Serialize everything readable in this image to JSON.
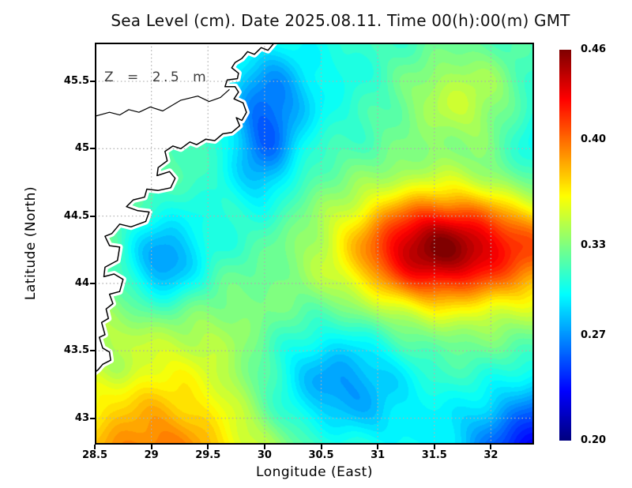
{
  "title": "Sea Level (cm). Date 2025.08.11. Time 00(h):00(m) GMT",
  "annotation": {
    "text": "Z = 2.5 m"
  },
  "axes": {
    "x": {
      "label": "Longitude (East)",
      "ticks": [
        {
          "value": 28.5,
          "label": "28.5"
        },
        {
          "value": 29,
          "label": "29"
        },
        {
          "value": 29.5,
          "label": "29.5"
        },
        {
          "value": 30,
          "label": "30"
        },
        {
          "value": 30.5,
          "label": "30.5"
        },
        {
          "value": 31,
          "label": "31"
        },
        {
          "value": 31.5,
          "label": "31.5"
        },
        {
          "value": 32,
          "label": "32"
        }
      ]
    },
    "y": {
      "label": "Latitude (North)",
      "ticks": [
        {
          "value": 45.5,
          "label": "45.5"
        },
        {
          "value": 45,
          "label": "45"
        },
        {
          "value": 44.5,
          "label": "44.5"
        },
        {
          "value": 44,
          "label": "44"
        },
        {
          "value": 43.5,
          "label": "43.5"
        },
        {
          "value": 43,
          "label": "43"
        }
      ]
    }
  },
  "colorbar": {
    "min": 0.2,
    "max": 0.46,
    "colormap": "jet",
    "labels": [
      {
        "value": 0.46,
        "label": "0.46"
      },
      {
        "value": 0.4,
        "label": "0.40"
      },
      {
        "value": 0.33,
        "label": "0.33"
      },
      {
        "value": 0.27,
        "label": "0.27"
      },
      {
        "value": 0.2,
        "label": "0.20"
      }
    ]
  },
  "chart_data": {
    "type": "heatmap",
    "title": "Sea Level (cm). Date 2025.08.11. Time 00(h):00(m) GMT",
    "xlabel": "Longitude (East)",
    "ylabel": "Latitude (North)",
    "x_range": [
      28.5,
      32.381
    ],
    "y_range": [
      42.804,
      45.787
    ],
    "value_range": [
      0.2,
      0.46
    ],
    "quant_step": 0.005,
    "grid": {
      "x": [
        29,
        29.5,
        30,
        30.5,
        31,
        31.5,
        32
      ],
      "y": [
        43,
        43.5,
        44,
        44.5,
        45,
        45.5
      ]
    },
    "grid_color": "#b0b0b0",
    "land_color": "#ffffff",
    "coast_color": "#000000",
    "base": {
      "level": 0.326,
      "lat_ref": 44.3,
      "slope": -0.0067
    },
    "blobs": [
      {
        "lon": 31.5,
        "lat": 44.26,
        "amp": 0.128,
        "sx": 0.52,
        "sy": 0.29,
        "note": "main high (dark red eddy)"
      },
      {
        "lon": 32.55,
        "lat": 44.28,
        "amp": 0.06,
        "sx": 0.45,
        "sy": 0.3,
        "note": "high extension to east edge"
      },
      {
        "lon": 29.0,
        "lat": 42.55,
        "amp": 0.058,
        "sx": 0.55,
        "sy": 0.45,
        "note": "southwest warm patch (orange)"
      },
      {
        "lon": 29.3,
        "lat": 43.3,
        "amp": 0.018,
        "sx": 0.85,
        "sy": 0.6,
        "note": "broad southwest elevation"
      },
      {
        "lon": 29.1,
        "lat": 44.15,
        "amp": -0.058,
        "sx": 0.26,
        "sy": 0.26,
        "note": "coastal low (blue spot)"
      },
      {
        "lon": 30.02,
        "lat": 45.28,
        "amp": -0.044,
        "sx": 0.24,
        "sy": 0.3,
        "note": "north low off delta"
      },
      {
        "lon": 30.0,
        "lat": 44.88,
        "amp": -0.026,
        "sx": 0.18,
        "sy": 0.22,
        "note": "north low southern tail"
      },
      {
        "lon": 30.6,
        "lat": 43.28,
        "amp": -0.06,
        "sx": 0.5,
        "sy": 0.33,
        "note": "south-central low"
      },
      {
        "lon": 32.6,
        "lat": 42.62,
        "amp": -0.125,
        "sx": 0.55,
        "sy": 0.45,
        "note": "southeast corner deep low"
      },
      {
        "lon": 31.75,
        "lat": 45.38,
        "amp": 0.03,
        "sx": 0.42,
        "sy": 0.25,
        "note": "northeast yellow-green patch"
      },
      {
        "lon": 32.45,
        "lat": 45.0,
        "amp": -0.028,
        "sx": 0.28,
        "sy": 0.45,
        "note": "east-edge teal band"
      },
      {
        "lon": 30.4,
        "lat": 45.45,
        "amp": -0.018,
        "sx": 0.55,
        "sy": 0.35,
        "note": "north cyan band"
      },
      {
        "lon": 29.7,
        "lat": 44.45,
        "amp": -0.018,
        "sx": 0.35,
        "sy": 0.38,
        "note": "coastal cyan band"
      },
      {
        "lon": 28.72,
        "lat": 43.37,
        "amp": -0.016,
        "sx": 0.12,
        "sy": 0.1,
        "note": "small coastal cyan dot"
      },
      {
        "lon": 31.3,
        "lat": 42.85,
        "amp": -0.022,
        "sx": 0.6,
        "sy": 0.35,
        "note": "southern blue bridge"
      }
    ],
    "noise": [
      {
        "amp": 0.003,
        "fx": 8.3,
        "fy": 12.7,
        "phase": 1.3,
        "mode": "prod"
      },
      {
        "amp": 0.0022,
        "fx": 15.1,
        "fy": 9.7,
        "phase": 0.0,
        "mode": "sum"
      }
    ],
    "coastline": [
      [
        30.09,
        45.79
      ],
      [
        30.03,
        45.73
      ],
      [
        29.97,
        45.75
      ],
      [
        29.91,
        45.7
      ],
      [
        29.85,
        45.72
      ],
      [
        29.8,
        45.67
      ],
      [
        29.74,
        45.64
      ],
      [
        29.71,
        45.6
      ],
      [
        29.77,
        45.56
      ],
      [
        29.76,
        45.52
      ],
      [
        29.67,
        45.51
      ],
      [
        29.65,
        45.46
      ],
      [
        29.74,
        45.46
      ],
      [
        29.77,
        45.42
      ],
      [
        29.73,
        45.37
      ],
      [
        29.81,
        45.34
      ],
      [
        29.84,
        45.27
      ],
      [
        29.8,
        45.21
      ],
      [
        29.75,
        45.23
      ],
      [
        29.78,
        45.17
      ],
      [
        29.71,
        45.12
      ],
      [
        29.63,
        45.11
      ],
      [
        29.56,
        45.06
      ],
      [
        29.48,
        45.07
      ],
      [
        29.4,
        45.03
      ],
      [
        29.34,
        45.05
      ],
      [
        29.26,
        45.0
      ],
      [
        29.19,
        45.02
      ],
      [
        29.12,
        44.98
      ],
      [
        29.14,
        44.91
      ],
      [
        29.06,
        44.86
      ],
      [
        29.05,
        44.8
      ],
      [
        29.16,
        44.83
      ],
      [
        29.21,
        44.78
      ],
      [
        29.17,
        44.71
      ],
      [
        29.06,
        44.69
      ],
      [
        28.96,
        44.7
      ],
      [
        28.94,
        44.64
      ],
      [
        28.84,
        44.62
      ],
      [
        28.78,
        44.57
      ],
      [
        28.88,
        44.54
      ],
      [
        28.98,
        44.53
      ],
      [
        28.95,
        44.46
      ],
      [
        28.82,
        44.42
      ],
      [
        28.72,
        44.44
      ],
      [
        28.65,
        44.37
      ],
      [
        28.59,
        44.35
      ],
      [
        28.63,
        44.28
      ],
      [
        28.72,
        44.27
      ],
      [
        28.7,
        44.17
      ],
      [
        28.59,
        44.12
      ],
      [
        28.58,
        44.05
      ],
      [
        28.67,
        44.07
      ],
      [
        28.75,
        44.03
      ],
      [
        28.72,
        43.94
      ],
      [
        28.63,
        43.92
      ],
      [
        28.66,
        43.85
      ],
      [
        28.6,
        43.81
      ],
      [
        28.62,
        43.74
      ],
      [
        28.56,
        43.71
      ],
      [
        28.59,
        43.62
      ],
      [
        28.54,
        43.6
      ],
      [
        28.57,
        43.52
      ],
      [
        28.63,
        43.49
      ],
      [
        28.64,
        43.43
      ],
      [
        28.57,
        43.4
      ],
      [
        28.53,
        43.36
      ],
      [
        28.5,
        43.34
      ]
    ],
    "river": [
      [
        28.5,
        45.24
      ],
      [
        28.63,
        45.27
      ],
      [
        28.72,
        45.25
      ],
      [
        28.8,
        45.29
      ],
      [
        28.89,
        45.27
      ],
      [
        28.99,
        45.31
      ],
      [
        29.1,
        45.28
      ],
      [
        29.26,
        45.36
      ],
      [
        29.41,
        45.39
      ],
      [
        29.51,
        45.35
      ],
      [
        29.61,
        45.38
      ],
      [
        29.69,
        45.44
      ]
    ]
  }
}
